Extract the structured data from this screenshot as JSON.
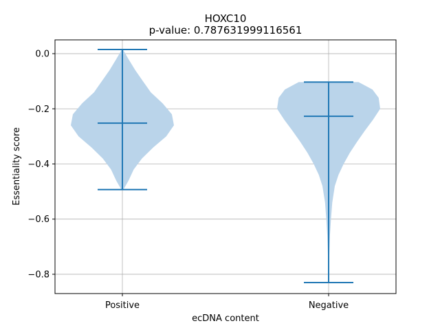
{
  "chart_data": {
    "type": "violin",
    "title": "HOXC10",
    "subtitle": "p-value: 0.787631999116561",
    "xlabel": "ecDNA content",
    "ylabel": "Essentiality score",
    "categories": [
      "Positive",
      "Negative"
    ],
    "ylim": [
      -0.87,
      0.05
    ],
    "yticks": [
      0.0,
      -0.2,
      -0.4,
      -0.6,
      -0.8
    ],
    "ytick_labels": [
      "0.0",
      "−0.2",
      "−0.4",
      "−0.6",
      "−0.8"
    ],
    "grid": true,
    "colors": {
      "violin_fill": "#bad4ea",
      "line": "#1f77b4",
      "grid": "#b0b0b0"
    },
    "series": [
      {
        "category": "Positive",
        "max": 0.015,
        "median": -0.252,
        "min": -0.493,
        "density_profile": [
          [
            0.015,
            0.01
          ],
          [
            -0.02,
            0.12
          ],
          [
            -0.06,
            0.25
          ],
          [
            -0.1,
            0.4
          ],
          [
            -0.14,
            0.55
          ],
          [
            -0.18,
            0.78
          ],
          [
            -0.22,
            0.96
          ],
          [
            -0.26,
            1.0
          ],
          [
            -0.3,
            0.85
          ],
          [
            -0.34,
            0.6
          ],
          [
            -0.38,
            0.38
          ],
          [
            -0.42,
            0.22
          ],
          [
            -0.46,
            0.12
          ],
          [
            -0.493,
            0.02
          ]
        ]
      },
      {
        "category": "Negative",
        "max": -0.103,
        "median": -0.227,
        "min": -0.83,
        "density_profile": [
          [
            -0.103,
            0.58
          ],
          [
            -0.13,
            0.85
          ],
          [
            -0.16,
            0.97
          ],
          [
            -0.2,
            1.0
          ],
          [
            -0.24,
            0.86
          ],
          [
            -0.28,
            0.7
          ],
          [
            -0.32,
            0.55
          ],
          [
            -0.36,
            0.41
          ],
          [
            -0.4,
            0.29
          ],
          [
            -0.44,
            0.19
          ],
          [
            -0.48,
            0.12
          ],
          [
            -0.54,
            0.07
          ],
          [
            -0.6,
            0.045
          ],
          [
            -0.66,
            0.025
          ],
          [
            -0.72,
            0.014
          ],
          [
            -0.78,
            0.008
          ],
          [
            -0.83,
            0.002
          ]
        ]
      }
    ]
  }
}
